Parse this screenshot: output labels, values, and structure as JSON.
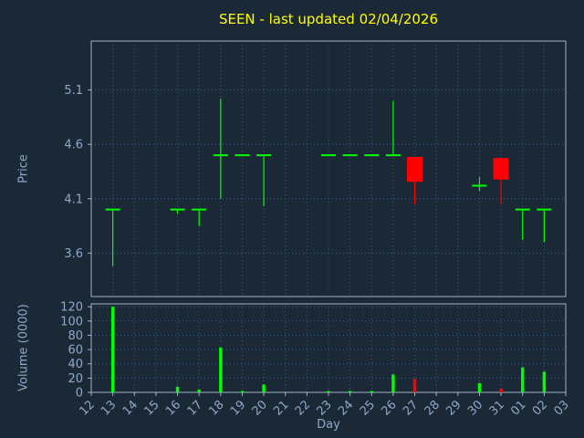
{
  "chart_data": {
    "type": "candlestick",
    "title": "SEEN - last updated 02/04/2026",
    "xlabel": "Day",
    "price_axis": {
      "label": "Price",
      "ticks": [
        "3.6",
        "4.1",
        "4.6",
        "5.1"
      ],
      "range": [
        3.2,
        5.55
      ]
    },
    "volume_axis": {
      "label": "Volume (0000)",
      "ticks": [
        "0",
        "20",
        "40",
        "60",
        "80",
        "100",
        "120"
      ],
      "range": [
        0,
        124
      ]
    },
    "days": [
      "12",
      "13",
      "14",
      "15",
      "16",
      "17",
      "18",
      "19",
      "20",
      "21",
      "22",
      "23",
      "24",
      "25",
      "26",
      "27",
      "28",
      "29",
      "30",
      "31",
      "01",
      "02",
      "03"
    ],
    "candles": [
      {
        "day": "13",
        "open": 4.0,
        "high": 4.0,
        "low": 3.48,
        "close": 4.0,
        "volume": 120
      },
      {
        "day": "16",
        "open": 4.0,
        "high": 4.0,
        "low": 3.96,
        "close": 4.0,
        "volume": 8
      },
      {
        "day": "17",
        "open": 4.0,
        "high": 4.0,
        "low": 3.85,
        "close": 4.0,
        "volume": 4
      },
      {
        "day": "18",
        "open": 4.5,
        "high": 5.02,
        "low": 4.1,
        "close": 4.5,
        "volume": 63
      },
      {
        "day": "19",
        "open": 4.5,
        "high": 4.5,
        "low": 4.5,
        "close": 4.5,
        "volume": 2
      },
      {
        "day": "20",
        "open": 4.5,
        "high": 4.5,
        "low": 4.03,
        "close": 4.5,
        "volume": 11
      },
      {
        "day": "23",
        "open": 4.5,
        "high": 4.5,
        "low": 4.5,
        "close": 4.5,
        "volume": 2
      },
      {
        "day": "24",
        "open": 4.5,
        "high": 4.5,
        "low": 4.5,
        "close": 4.5,
        "volume": 2
      },
      {
        "day": "25",
        "open": 4.5,
        "high": 4.5,
        "low": 4.5,
        "close": 4.5,
        "volume": 2
      },
      {
        "day": "26",
        "open": 4.5,
        "high": 5.0,
        "low": 4.5,
        "close": 4.5,
        "volume": 25
      },
      {
        "day": "27",
        "open": 4.48,
        "high": 4.48,
        "low": 4.05,
        "close": 4.26,
        "volume": 19
      },
      {
        "day": "30",
        "open": 4.22,
        "high": 4.3,
        "low": 4.17,
        "close": 4.22,
        "volume": 13
      },
      {
        "day": "31",
        "open": 4.47,
        "high": 4.47,
        "low": 4.05,
        "close": 4.28,
        "volume": 5
      },
      {
        "day": "01",
        "open": 4.0,
        "high": 4.0,
        "low": 3.72,
        "close": 4.0,
        "volume": 35
      },
      {
        "day": "02",
        "open": 4.0,
        "high": 4.0,
        "low": 3.7,
        "close": 4.0,
        "volume": 29
      }
    ],
    "colors": {
      "up": "#00ff00",
      "down": "#ff0000",
      "grid": "#3a5f85",
      "frame": "#9fb3c8",
      "tick_text": "#8fa9c9",
      "title": "#ffff00",
      "background": "#1b2836"
    },
    "layout": {
      "grid": "dotted",
      "legend": "none"
    }
  }
}
